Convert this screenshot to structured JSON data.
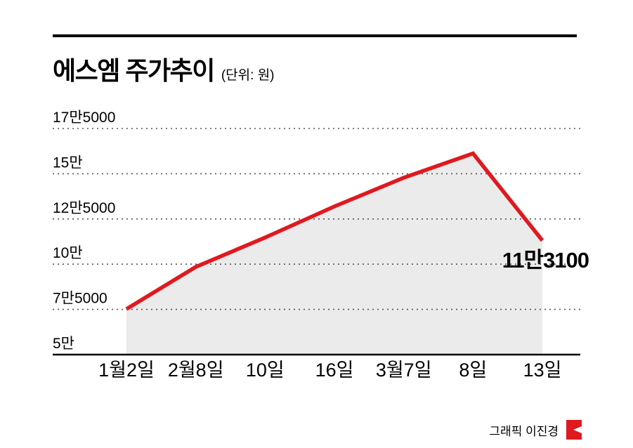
{
  "header": {
    "title": "에스엠 주가추이",
    "unit": "(단위: 원)"
  },
  "chart_data": {
    "type": "area",
    "title": "에스엠 주가추이",
    "unit_label": "(단위: 원)",
    "categories": [
      "1월2일",
      "2월8일",
      "10일",
      "16일",
      "3월7일",
      "8일",
      "13일"
    ],
    "values": [
      75200,
      98500,
      114700,
      131900,
      147800,
      161200,
      113100
    ],
    "ylim": [
      50000,
      175000
    ],
    "y_ticks": [
      {
        "value": 175000,
        "label": "17만5000"
      },
      {
        "value": 150000,
        "label": "15만"
      },
      {
        "value": 125000,
        "label": "12만5000"
      },
      {
        "value": 100000,
        "label": "10만"
      },
      {
        "value": 75000,
        "label": "7만5000"
      },
      {
        "value": 50000,
        "label": "5만"
      }
    ],
    "annotation": {
      "label": "11만3100",
      "value": 113100
    },
    "line_color": "#e0191f",
    "area_color": "#ebebeb",
    "grid": "dotted",
    "legend": "none"
  },
  "footer": {
    "credit": "그래픽 이진경"
  },
  "colors": {
    "accent_red": "#e0191f",
    "text": "#000000",
    "background": "#ffffff"
  }
}
